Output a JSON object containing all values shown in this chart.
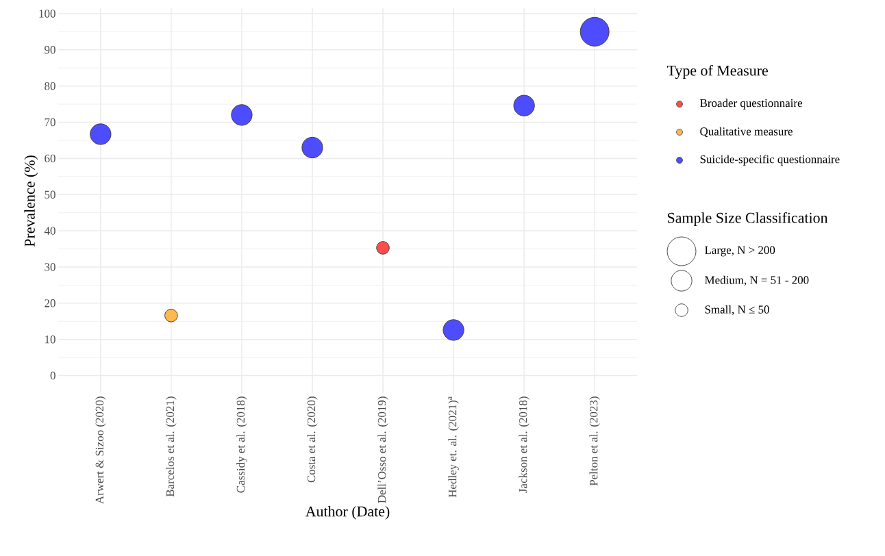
{
  "chart_data": {
    "type": "bubble",
    "xlabel": "Author (Date)",
    "ylabel": "Prevalence (%)",
    "legend_title": "Type of Measure",
    "categories": [
      "Arwert & Sizoo (2020)",
      "Barcelos et al. (2021)",
      "Cassidy et al. (2018)",
      "Costa et al. (2020)",
      "Dell’Osso et al. (2019)",
      "Hedley et. al. (2021)$^{a}$",
      "Jackson et al. (2018)",
      "Pelton et al. (2023)"
    ],
    "series": [
      {
        "name": "Broader questionnaire",
        "color": "#ff4d4d",
        "values": [
          null,
          null,
          null,
          null,
          35.3,
          null,
          null,
          null
        ],
        "sizes": [
          null,
          null,
          null,
          null,
          0.3,
          null,
          null,
          null
        ]
      },
      {
        "name": "Qualitative measure",
        "color": "#ffb84d",
        "values": [
          null,
          16.6,
          null,
          null,
          null,
          null,
          null,
          null
        ],
        "sizes": [
          null,
          0.3,
          null,
          null,
          null,
          null,
          null,
          null
        ]
      },
      {
        "name": "Suicide-specific questionnaire",
        "color": "#4d4dff",
        "values": [
          66.7,
          null,
          72.0,
          63.0,
          null,
          12.6,
          74.6,
          95.0
        ],
        "sizes": [
          0.6,
          null,
          0.6,
          0.6,
          null,
          0.6,
          0.6,
          1
        ]
      }
    ],
    "size_legend": [
      {
        "value": 1,
        "label": "Large, N > 200"
      },
      {
        "value": 0.6,
        "label": "Medium, N = 51 - 200"
      },
      {
        "value": 0.3,
        "label": "Small, N ≤ 50"
      }
    ],
    "annotations": [
      "Sample Size Classification"
    ],
    "ylim": [
      -5,
      101.5
    ],
    "yticks": [
      0,
      10,
      20,
      30,
      40,
      50,
      60,
      70,
      80,
      90,
      100
    ],
    "grid": true,
    "legend": "right",
    "marker": "circle"
  }
}
